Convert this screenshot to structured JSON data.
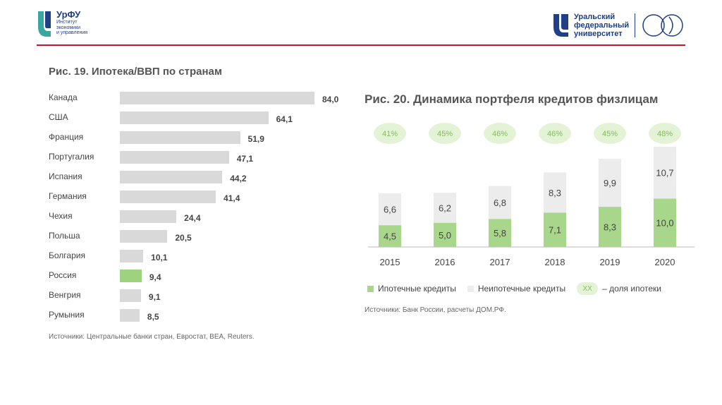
{
  "header": {
    "left_logo": {
      "brand": "УрФУ",
      "line1": "Институт",
      "line2": "экономики",
      "line3": "и управления"
    },
    "right_logo": {
      "line1": "Уральский",
      "line2": "федеральный",
      "line3": "университет"
    }
  },
  "colors": {
    "accent_line": "#c2182e",
    "brand_blue": "#1f3f86",
    "bar_grey": "#d9d9d9",
    "highlight_green": "#9fd27f",
    "mortgage_green": "#a8d68a",
    "non_mortgage_grey": "#ececec"
  },
  "chart_data": [
    {
      "type": "bar",
      "orientation": "horizontal",
      "title": "Рис. 19. Ипотека/ВВП по странам",
      "categories": [
        "Канада",
        "США",
        "Франция",
        "Португалия",
        "Испания",
        "Германия",
        "Чехия",
        "Польша",
        "Болгария",
        "Россия",
        "Венгрия",
        "Румыния"
      ],
      "values": [
        84.0,
        64.1,
        51.9,
        47.1,
        44.2,
        41.4,
        24.4,
        20.5,
        10.1,
        9.4,
        9.1,
        8.5
      ],
      "value_labels": [
        "84,0",
        "64,1",
        "51,9",
        "47,1",
        "44,2",
        "41,4",
        "24,4",
        "20,5",
        "10,1",
        "9,4",
        "9,1",
        "8,5"
      ],
      "highlight": "Россия",
      "source": "Источники: Центральные банки стран, Евростат, BEA, Reuters."
    },
    {
      "type": "bar",
      "stacked": true,
      "title": "Рис. 20. Динамика портфеля кредитов физлицам",
      "categories": [
        "2015",
        "2016",
        "2017",
        "2018",
        "2019",
        "2020"
      ],
      "series": [
        {
          "name": "Ипотечные кредиты",
          "values": [
            4.5,
            5.0,
            5.8,
            7.1,
            8.3,
            10.0
          ],
          "labels": [
            "4,5",
            "5,0",
            "5,8",
            "7,1",
            "8,3",
            "10,0"
          ]
        },
        {
          "name": "Неипотечные кредиты",
          "values": [
            6.6,
            6.2,
            6.8,
            8.3,
            9.9,
            10.7
          ],
          "labels": [
            "6,6",
            "6,2",
            "6,8",
            "8,3",
            "9,9",
            "10,7"
          ]
        }
      ],
      "mortgage_share": [
        "41%",
        "45%",
        "46%",
        "46%",
        "45%",
        "48%"
      ],
      "legend": {
        "mortgage": "Ипотечные кредиты",
        "non_mortgage": "Неипотечные кредиты",
        "share_marker": "XX",
        "share_label": "– доля ипотеки"
      },
      "source": "Источники: Банк России, расчеты ДОМ.РФ."
    }
  ]
}
